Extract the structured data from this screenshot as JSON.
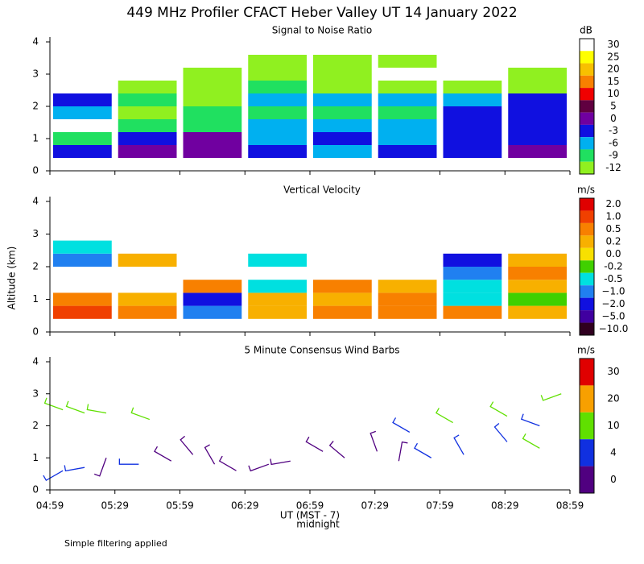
{
  "title": "449 MHz Profiler CFACT Heber Valley UT 14 January 2022",
  "y_axis_label": "Altitude (km)",
  "x_axis_label": "UT (MST - 7)",
  "x_axis_note": "midnight",
  "footnote": "Simple filtering applied",
  "chart_data": [
    {
      "type": "heatmap",
      "title": "Signal to Noise Ratio",
      "unit": "dB",
      "x_bins": [
        "04:59",
        "05:29",
        "05:59",
        "06:29",
        "06:59",
        "07:29",
        "07:59",
        "08:29",
        "08:59"
      ],
      "y_bins": [
        0.4,
        0.8,
        1.2,
        1.6,
        2.0,
        2.4,
        2.8,
        3.2,
        3.6
      ],
      "values": [
        [
          -3,
          0,
          0,
          -3,
          -6,
          -3,
          -3,
          0
        ],
        [
          -9,
          -3,
          0,
          -6,
          -3,
          -6,
          -3,
          -3
        ],
        [
          null,
          -9,
          -9,
          -6,
          -6,
          -6,
          -3,
          -3
        ],
        [
          -6,
          -12,
          -9,
          -9,
          -9,
          -9,
          -3,
          -3
        ],
        [
          -3,
          -9,
          -12,
          -6,
          -6,
          -6,
          -6,
          -3
        ],
        [
          null,
          -12,
          -12,
          -9,
          -12,
          -12,
          -12,
          -12
        ],
        [
          null,
          null,
          -12,
          -12,
          -12,
          null,
          null,
          -12
        ],
        [
          null,
          null,
          null,
          -12,
          -12,
          -12,
          null,
          null
        ]
      ],
      "xlim": [
        "04:59",
        "08:59"
      ],
      "xticks": [
        "04:59",
        "05:29",
        "05:59",
        "06:29",
        "06:59",
        "07:29",
        "07:59",
        "08:29",
        "08:59"
      ],
      "ylim": [
        0,
        4
      ],
      "yticks": [
        0,
        1,
        2,
        3,
        4
      ],
      "colorbar": {
        "ticks": [
          30,
          25,
          20,
          15,
          10,
          5,
          0,
          -3,
          -6,
          -9,
          -12
        ],
        "colors": [
          "#ffffff",
          "#ffff00",
          "#f8c000",
          "#f88000",
          "#f00000",
          "#600040",
          "#7000a0",
          "#1010e0",
          "#00b0f0",
          "#20e060",
          "#90f020"
        ]
      }
    },
    {
      "type": "heatmap",
      "title": "Vertical Velocity",
      "unit": "m/s",
      "x_bins": [
        "04:59",
        "05:29",
        "05:59",
        "06:29",
        "06:59",
        "07:29",
        "07:59",
        "08:29",
        "08:59"
      ],
      "y_bins": [
        0.4,
        0.8,
        1.2,
        1.6,
        2.0,
        2.4,
        2.8
      ],
      "values": [
        [
          1,
          0.5,
          -1,
          0.2,
          0.5,
          0.5,
          0.5,
          0.2
        ],
        [
          0.5,
          0.2,
          -2,
          0.2,
          0.2,
          0.5,
          -0.5,
          -0.2
        ],
        [
          null,
          null,
          0.5,
          -0.5,
          0.5,
          0.2,
          -0.5,
          0.2
        ],
        [
          null,
          null,
          null,
          null,
          null,
          null,
          -1,
          0.5
        ],
        [
          -1,
          0.2,
          null,
          -0.5,
          null,
          null,
          -2,
          0.2
        ],
        [
          -0.5,
          null,
          null,
          null,
          null,
          null,
          null,
          null
        ]
      ],
      "xlim": [
        "04:59",
        "08:59"
      ],
      "xticks": [
        "04:59",
        "05:29",
        "05:59",
        "06:29",
        "06:59",
        "07:29",
        "07:59",
        "08:29",
        "08:59"
      ],
      "ylim": [
        0,
        4
      ],
      "yticks": [
        0,
        1,
        2,
        3,
        4
      ],
      "colorbar": {
        "ticks": [
          {
            "value": 2,
            "label": "2.0"
          },
          {
            "value": 1,
            "label": "1.0"
          },
          0.5,
          0.2,
          {
            "value": 0,
            "label": "0.0"
          },
          -0.2,
          -0.5,
          {
            "value": -1,
            "label": "−1.0"
          },
          {
            "value": -2,
            "label": "−2.0"
          },
          {
            "value": -5,
            "label": "−5.0"
          },
          {
            "value": -10,
            "label": "−10.0"
          }
        ],
        "colors": [
          "#e00000",
          "#f04000",
          "#f88000",
          "#f8b000",
          "#f8e000",
          "#40d000",
          "#00e0e0",
          "#2080f0",
          "#1010e0",
          "#4000a0",
          "#300020"
        ]
      }
    },
    {
      "type": "barbs",
      "title": "5 Minute Consensus Wind Barbs",
      "unit": "m/s",
      "x": [
        "05:05",
        "05:15",
        "05:25",
        "05:40",
        "05:55",
        "06:05",
        "06:15",
        "06:25",
        "06:40",
        "06:50",
        "07:05",
        "07:15",
        "07:30",
        "07:40",
        "07:55",
        "08:10",
        "08:30",
        "08:45",
        "05:05",
        "05:15",
        "05:25",
        "05:45",
        "07:45",
        "08:05",
        "08:30",
        "08:45",
        "08:55"
      ],
      "y": [
        0.6,
        0.7,
        1.0,
        0.8,
        0.9,
        1.1,
        0.8,
        0.6,
        0.8,
        0.9,
        1.2,
        1.0,
        1.2,
        0.9,
        1.0,
        1.1,
        1.5,
        1.3,
        2.5,
        2.4,
        2.4,
        2.2,
        1.8,
        2.1,
        2.3,
        2.0,
        3.0
      ],
      "speed": [
        6,
        5,
        3,
        8,
        3,
        2,
        3,
        2,
        2,
        2,
        3,
        2,
        2,
        3,
        5,
        7,
        9,
        10,
        12,
        12,
        11,
        10,
        9,
        10,
        10,
        9,
        12
      ],
      "direction": [
        240,
        260,
        200,
        270,
        300,
        320,
        330,
        300,
        250,
        260,
        300,
        310,
        340,
        10,
        300,
        330,
        320,
        300,
        290,
        290,
        280,
        290,
        300,
        300,
        300,
        290,
        250
      ],
      "xlim": [
        "04:59",
        "08:59"
      ],
      "xticks": [
        "04:59",
        "05:29",
        "05:59",
        "06:29",
        "06:59",
        "07:29",
        "07:59",
        "08:29",
        "08:59"
      ],
      "ylim": [
        0,
        4
      ],
      "yticks": [
        0,
        1,
        2,
        3,
        4
      ],
      "colorbar": {
        "ticks": [
          30,
          20,
          10,
          4,
          0
        ],
        "colors": [
          "#e00000",
          "#f8a000",
          "#60e000",
          "#1030e0",
          "#500080"
        ]
      }
    }
  ]
}
